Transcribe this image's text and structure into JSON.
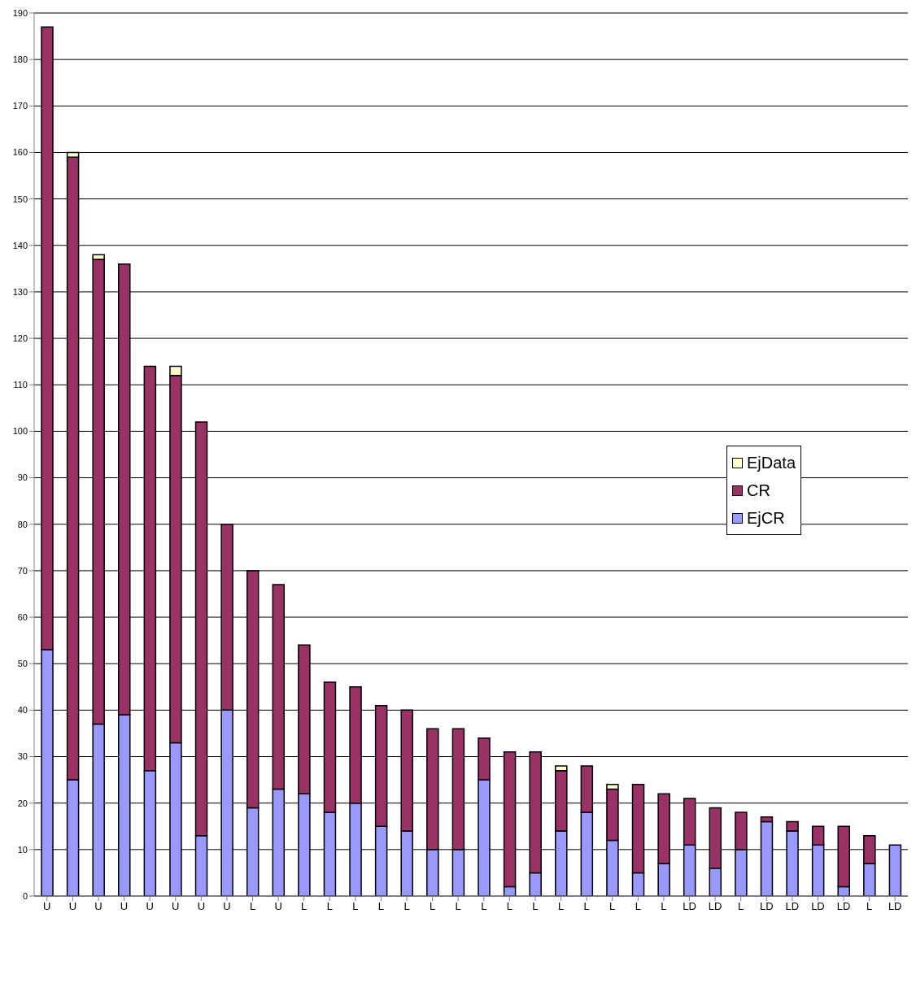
{
  "chart_data": {
    "type": "bar",
    "stacked": true,
    "categories": [
      "U",
      "U",
      "U",
      "U",
      "U",
      "U",
      "U",
      "U",
      "L",
      "U",
      "L",
      "L",
      "L",
      "L",
      "L",
      "L",
      "L",
      "L",
      "L",
      "L",
      "L",
      "L",
      "L",
      "L",
      "L",
      "LD",
      "LD",
      "L",
      "LD",
      "LD",
      "LD",
      "LD",
      "L",
      "LD"
    ],
    "series": [
      {
        "name": "EjCR",
        "color": "#9999ff",
        "values": [
          53,
          25,
          37,
          39,
          27,
          33,
          13,
          40,
          19,
          23,
          22,
          18,
          20,
          15,
          14,
          10,
          10,
          25,
          2,
          5,
          14,
          18,
          12,
          5,
          7,
          11,
          6,
          10,
          16,
          14,
          11,
          2,
          7,
          11
        ]
      },
      {
        "name": "CR",
        "color": "#993366",
        "values": [
          134,
          134,
          100,
          97,
          87,
          79,
          89,
          40,
          51,
          44,
          32,
          28,
          25,
          26,
          26,
          26,
          26,
          9,
          29,
          26,
          13,
          10,
          11,
          19,
          15,
          10,
          13,
          8,
          1,
          2,
          4,
          13,
          6,
          0
        ]
      },
      {
        "name": "EjData",
        "color": "#ffffcc",
        "values": [
          0,
          1,
          1,
          0,
          0,
          2,
          0,
          0,
          0,
          0,
          0,
          0,
          0,
          0,
          0,
          0,
          0,
          0,
          0,
          0,
          1,
          0,
          1,
          0,
          0,
          0,
          0,
          0,
          0,
          0,
          0,
          0,
          0,
          0
        ]
      }
    ],
    "ylim": [
      0,
      190
    ],
    "yticks": [
      0,
      10,
      20,
      30,
      40,
      50,
      60,
      70,
      80,
      90,
      100,
      110,
      120,
      130,
      140,
      150,
      160,
      170,
      180,
      190
    ],
    "grid": "y",
    "legend": "right"
  }
}
